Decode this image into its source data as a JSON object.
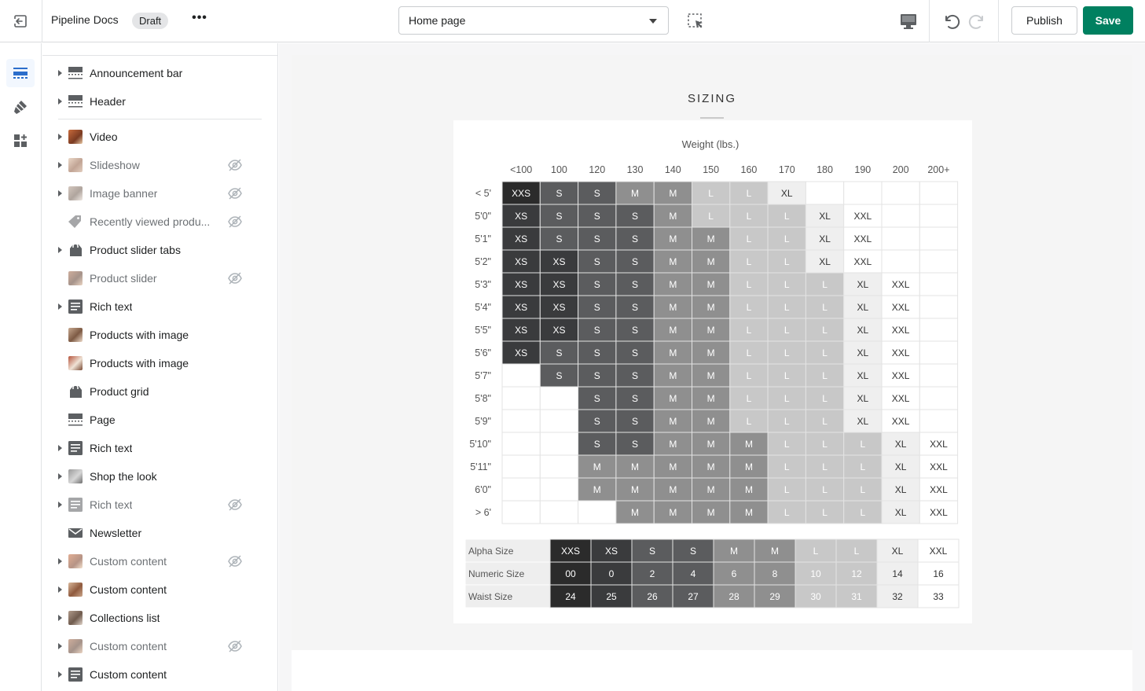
{
  "topbar": {
    "store_name": "Pipeline Docs",
    "badge": "Draft",
    "more_label": "•••",
    "page_select": "Home page",
    "publish_label": "Publish",
    "save_label": "Save"
  },
  "rail": {
    "items": [
      {
        "icon": "sections-icon",
        "active": true
      },
      {
        "icon": "theme-settings-icon",
        "active": false
      },
      {
        "icon": "app-blocks-icon",
        "active": false
      }
    ]
  },
  "sidebar": {
    "items": [
      {
        "label": "Announcement bar",
        "icon": "layout-icon",
        "expandable": true,
        "hidden": false
      },
      {
        "label": "Header",
        "icon": "layout-icon",
        "expandable": true,
        "hidden": false
      },
      {
        "label": "Video",
        "icon": "image-thumb",
        "expandable": true,
        "hidden": false
      },
      {
        "label": "Slideshow",
        "icon": "image-thumb",
        "expandable": true,
        "hidden": true
      },
      {
        "label": "Image banner",
        "icon": "image-thumb",
        "expandable": true,
        "hidden": true
      },
      {
        "label": "Recently viewed produ...",
        "icon": "tag-icon",
        "expandable": false,
        "hidden": true
      },
      {
        "label": "Product slider tabs",
        "icon": "product-bag-icon",
        "expandable": true,
        "hidden": false
      },
      {
        "label": "Product slider",
        "icon": "image-thumb",
        "expandable": false,
        "hidden": true
      },
      {
        "label": "Rich text",
        "icon": "text-icon",
        "expandable": true,
        "hidden": false
      },
      {
        "label": "Products with image",
        "icon": "image-thumb",
        "expandable": false,
        "hidden": false
      },
      {
        "label": "Products with image",
        "icon": "image-thumb",
        "expandable": false,
        "hidden": false
      },
      {
        "label": "Product grid",
        "icon": "product-bag-icon",
        "expandable": false,
        "hidden": false
      },
      {
        "label": "Page",
        "icon": "layout-icon",
        "expandable": false,
        "hidden": false
      },
      {
        "label": "Rich text",
        "icon": "text-icon",
        "expandable": true,
        "hidden": false
      },
      {
        "label": "Shop the look",
        "icon": "image-thumb",
        "expandable": true,
        "hidden": false
      },
      {
        "label": "Rich text",
        "icon": "text-icon",
        "expandable": true,
        "hidden": true
      },
      {
        "label": "Newsletter",
        "icon": "envelope-icon",
        "expandable": false,
        "hidden": false
      },
      {
        "label": "Custom content",
        "icon": "image-thumb",
        "expandable": true,
        "hidden": true
      },
      {
        "label": "Custom content",
        "icon": "image-thumb",
        "expandable": true,
        "hidden": false
      },
      {
        "label": "Collections list",
        "icon": "image-thumb",
        "expandable": true,
        "hidden": false
      },
      {
        "label": "Custom content",
        "icon": "image-thumb",
        "expandable": true,
        "hidden": true
      },
      {
        "label": "Custom content",
        "icon": "text-icon",
        "expandable": true,
        "hidden": false
      }
    ]
  },
  "preview": {
    "section_title": "SIZING"
  },
  "chart_data": {
    "type": "heatmap",
    "title": "Weight (lbs.)",
    "columns": [
      "<100",
      "100",
      "120",
      "130",
      "140",
      "150",
      "160",
      "170",
      "180",
      "190",
      "200",
      "200+"
    ],
    "rows": [
      "< 5'",
      "5'0\"",
      "5'1\"",
      "5'2\"",
      "5'3\"",
      "5'4\"",
      "5'5\"",
      "5'6\"",
      "5'7\"",
      "5'8\"",
      "5'9\"",
      "5'10\"",
      "5'11\"",
      "6'0\"",
      "> 6'"
    ],
    "cells": [
      [
        "XXS",
        "S",
        "S",
        "M",
        "M",
        "L",
        "L",
        "XL",
        "",
        "",
        "",
        ""
      ],
      [
        "XS",
        "S",
        "S",
        "S",
        "M",
        "L",
        "L",
        "L",
        "XL",
        "XXL",
        "",
        ""
      ],
      [
        "XS",
        "S",
        "S",
        "S",
        "M",
        "M",
        "L",
        "L",
        "XL",
        "XXL",
        "",
        ""
      ],
      [
        "XS",
        "XS",
        "S",
        "S",
        "M",
        "M",
        "L",
        "L",
        "XL",
        "XXL",
        "",
        ""
      ],
      [
        "XS",
        "XS",
        "S",
        "S",
        "M",
        "M",
        "L",
        "L",
        "L",
        "XL",
        "XXL",
        ""
      ],
      [
        "XS",
        "XS",
        "S",
        "S",
        "M",
        "M",
        "L",
        "L",
        "L",
        "XL",
        "XXL",
        ""
      ],
      [
        "XS",
        "XS",
        "S",
        "S",
        "M",
        "M",
        "L",
        "L",
        "L",
        "XL",
        "XXL",
        ""
      ],
      [
        "XS",
        "S",
        "S",
        "S",
        "M",
        "M",
        "L",
        "L",
        "L",
        "XL",
        "XXL",
        ""
      ],
      [
        "",
        "S",
        "S",
        "S",
        "M",
        "M",
        "L",
        "L",
        "L",
        "XL",
        "XXL",
        ""
      ],
      [
        "",
        "",
        "S",
        "S",
        "M",
        "M",
        "L",
        "L",
        "L",
        "XL",
        "XXL",
        ""
      ],
      [
        "",
        "",
        "S",
        "S",
        "M",
        "M",
        "L",
        "L",
        "L",
        "XL",
        "XXL",
        ""
      ],
      [
        "",
        "",
        "S",
        "S",
        "M",
        "M",
        "M",
        "L",
        "L",
        "L",
        "XL",
        "XXL"
      ],
      [
        "",
        "",
        "M",
        "M",
        "M",
        "M",
        "M",
        "L",
        "L",
        "L",
        "XL",
        "XXL"
      ],
      [
        "",
        "",
        "M",
        "M",
        "M",
        "M",
        "M",
        "L",
        "L",
        "L",
        "XL",
        "XXL"
      ],
      [
        "",
        "",
        "",
        "M",
        "M",
        "M",
        "M",
        "L",
        "L",
        "L",
        "XL",
        "XXL"
      ]
    ],
    "size_colors": {
      "XXS": "#2b2b2b",
      "XS": "#3a3b3d",
      "S": "#5b5c5e",
      "M": "#8f8f8f",
      "L": "#c8c8c8",
      "XL": "#efefef",
      "XXL": "#ffffff",
      "": "#ffffff"
    },
    "conversion": {
      "headers": [
        "Alpha Size",
        "Numeric Size",
        "Waist Size"
      ],
      "columns": [
        {
          "alpha": "XXS",
          "numeric": "00",
          "waist": "24"
        },
        {
          "alpha": "XS",
          "numeric": "0",
          "waist": "25"
        },
        {
          "alpha": "S",
          "numeric": "2",
          "waist": "26"
        },
        {
          "alpha": "S",
          "numeric": "4",
          "waist": "27"
        },
        {
          "alpha": "M",
          "numeric": "6",
          "waist": "28"
        },
        {
          "alpha": "M",
          "numeric": "8",
          "waist": "29"
        },
        {
          "alpha": "L",
          "numeric": "10",
          "waist": "30"
        },
        {
          "alpha": "L",
          "numeric": "12",
          "waist": "31"
        },
        {
          "alpha": "XL",
          "numeric": "14",
          "waist": "32"
        },
        {
          "alpha": "XXL",
          "numeric": "16",
          "waist": "33"
        }
      ]
    }
  }
}
